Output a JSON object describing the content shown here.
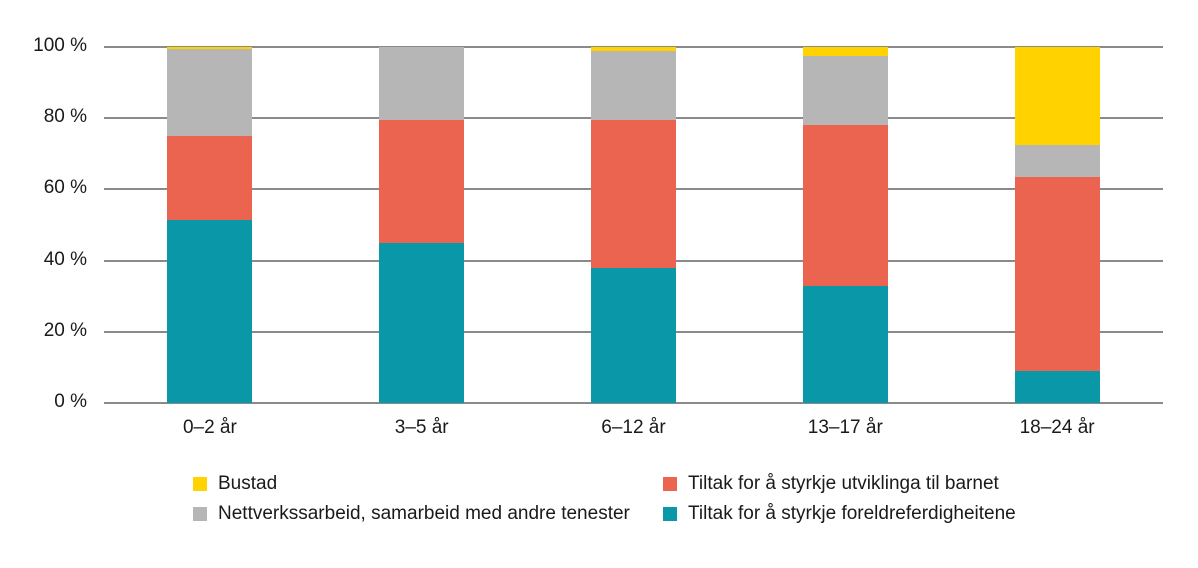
{
  "chart_data": {
    "type": "bar",
    "stacked": true,
    "orientation": "vertical",
    "title": "",
    "categories": [
      "0–2 år",
      "3–5 år",
      "6–12 år",
      "13–17 år",
      "18–24 år"
    ],
    "series": [
      {
        "name": "Tiltak for å styrkje foreldreferdigheitene",
        "color": "#0a97a8",
        "values": [
          51.5,
          45,
          38,
          33,
          9
        ]
      },
      {
        "name": "Tiltak for å styrkje utviklinga til barnet",
        "color": "#ea6450",
        "values": [
          23.5,
          34.5,
          41.5,
          45,
          54.5
        ]
      },
      {
        "name": "Nettverkssarbeid, samarbeid med andre tenester",
        "color": "#b6b6b6",
        "values": [
          24.5,
          20.5,
          19.5,
          19.5,
          9
        ]
      },
      {
        "name": "Bustad",
        "color": "#ffd200",
        "values": [
          0.5,
          0,
          1,
          2.5,
          27.5
        ]
      }
    ],
    "unit": "%",
    "ylim": [
      0,
      100
    ],
    "yticks": [
      {
        "label": "0 %",
        "value": 0
      },
      {
        "label": "20 %",
        "value": 20
      },
      {
        "label": "40 %",
        "value": 40
      },
      {
        "label": "60 %",
        "value": 60
      },
      {
        "label": "80 %",
        "value": 80
      },
      {
        "label": "100 %",
        "value": 100
      }
    ],
    "grid": true,
    "gridline_color": "#8a8a8a",
    "legend_position": "bottom"
  },
  "legend": {
    "items": [
      {
        "label": "Bustad",
        "color": "#ffd200"
      },
      {
        "label": "Tiltak for å styrkje utviklinga til barnet",
        "color": "#ea6450"
      },
      {
        "label": "Nettverkssarbeid, samarbeid med andre tenester",
        "color": "#b6b6b6"
      },
      {
        "label": "Tiltak for å styrkje foreldreferdigheitene",
        "color": "#0a97a8"
      }
    ]
  }
}
